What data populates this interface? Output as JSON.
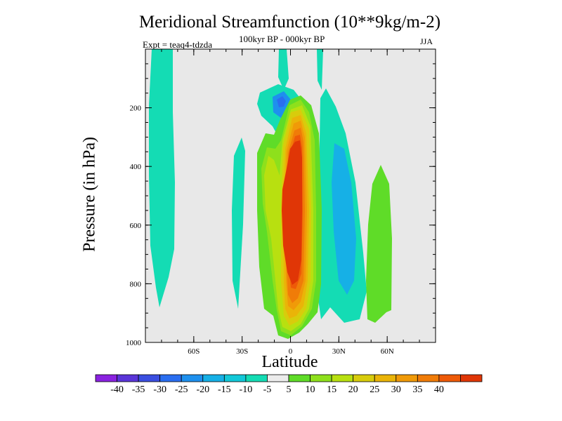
{
  "chart_data": {
    "type": "contour",
    "title": "Meridional Streamfunction (10**9kg/m-2)",
    "subtitle": "100kyr BP - 000kyr BP",
    "experiment": "Expt = teaq4-tdzda",
    "season": "JJA",
    "xlabel": "Latitude",
    "ylabel": "Pressure (in hPa)",
    "xlim": [
      -90,
      90
    ],
    "ylim": [
      1000,
      0
    ],
    "x_ticks": [
      {
        "value": -60,
        "label": "60S"
      },
      {
        "value": -30,
        "label": "30S"
      },
      {
        "value": 0,
        "label": "0"
      },
      {
        "value": 30,
        "label": "30N"
      },
      {
        "value": 60,
        "label": "60N"
      }
    ],
    "y_ticks": [
      {
        "value": 200,
        "label": "200"
      },
      {
        "value": 400,
        "label": "400"
      },
      {
        "value": 600,
        "label": "600"
      },
      {
        "value": 800,
        "label": "800"
      },
      {
        "value": 1000,
        "label": "1000"
      }
    ],
    "background_color": "#e8e8e8",
    "colorbar": {
      "labels": [
        "-40",
        "-35",
        "-30",
        "-25",
        "-20",
        "-15",
        "-10",
        "-5",
        "5",
        "10",
        "15",
        "20",
        "25",
        "30",
        "35",
        "40"
      ],
      "colors": [
        "#8a22e0",
        "#5a35d8",
        "#3a4ee0",
        "#2a6ef0",
        "#1e90ee",
        "#16b0e6",
        "#12c8d8",
        "#14dcb4",
        "#ececec",
        "#5fdc28",
        "#8ee01c",
        "#b8e010",
        "#d8cc0c",
        "#eab408",
        "#f09a08",
        "#f07c08",
        "#ee5a08",
        "#e03606"
      ]
    },
    "features": [
      {
        "name": "central positive cell",
        "lat_range": [
          -10,
          15
        ],
        "p_range": [
          150,
          990
        ],
        "peak": 40
      },
      {
        "name": "upper negative cell",
        "center_lat": -3,
        "center_p": 180,
        "peak": -30
      },
      {
        "name": "southern negative band",
        "lat_range": [
          -85,
          -70
        ],
        "p_range": [
          0,
          880
        ],
        "peak": -10
      },
      {
        "name": "northern negative band",
        "lat_range": [
          20,
          40
        ],
        "p_range": [
          280,
          960
        ],
        "peak": -15
      },
      {
        "name": "northern positive band",
        "lat_range": [
          48,
          62
        ],
        "p_range": [
          380,
          930
        ],
        "peak": 10
      }
    ]
  }
}
